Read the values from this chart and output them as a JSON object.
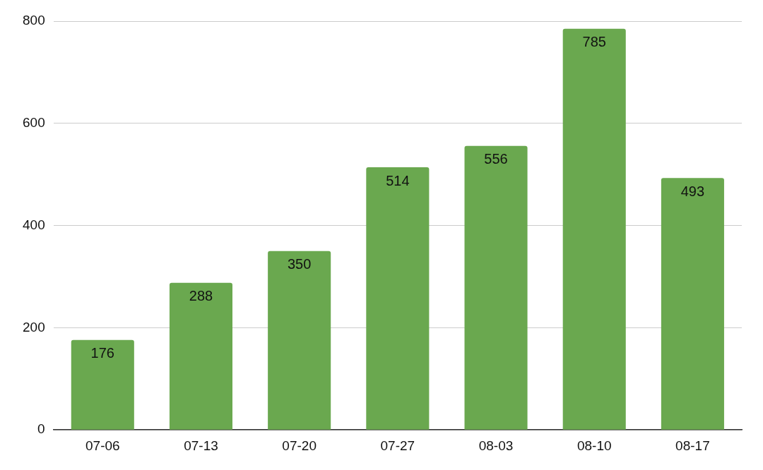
{
  "chart_data": {
    "type": "bar",
    "categories": [
      "07-06",
      "07-13",
      "07-20",
      "07-27",
      "08-03",
      "08-10",
      "08-17"
    ],
    "values": [
      176,
      288,
      350,
      514,
      556,
      785,
      493
    ],
    "color": "#6aa84f",
    "ylim": [
      0,
      800
    ],
    "yticks": [
      0,
      200,
      400,
      600,
      800
    ],
    "grid": "y",
    "data_labels": true,
    "legend": false
  }
}
